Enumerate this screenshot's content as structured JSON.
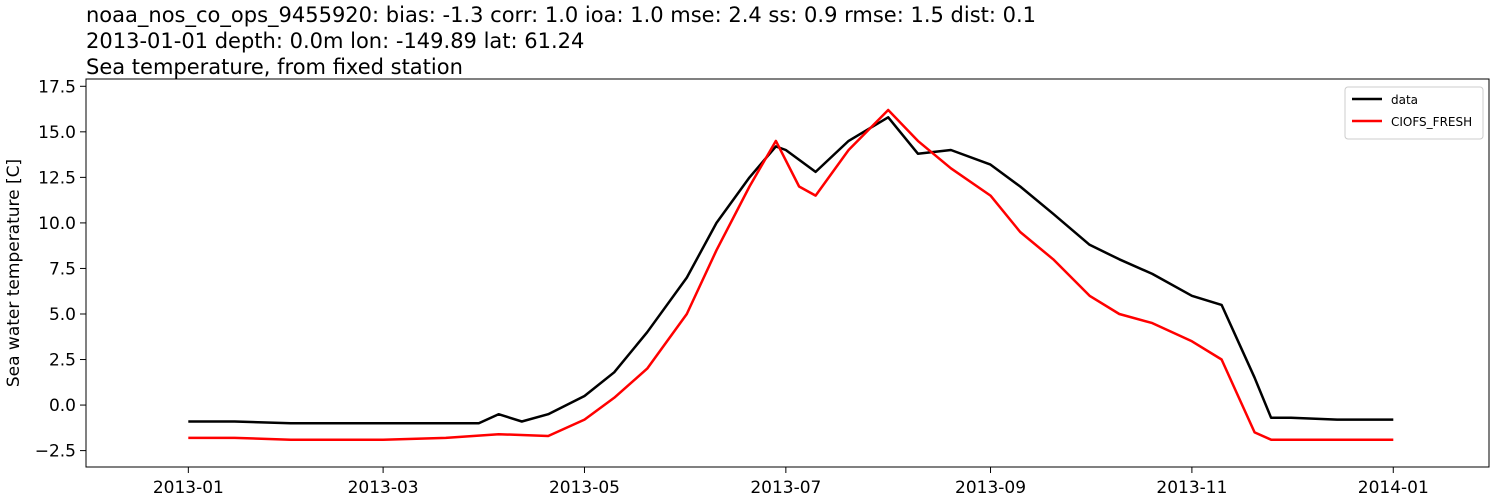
{
  "header": {
    "line1": "noaa_nos_co_ops_9455920: bias: -1.3  corr: 1.0  ioa: 1.0  mse: 2.4  ss: 0.9  rmse: 1.5  dist: 0.1",
    "line2": "2013-01-01 depth: 0.0m lon: -149.89 lat: 61.24",
    "line3": "Sea temperature, from fixed station"
  },
  "chart_data": {
    "type": "line",
    "title": "noaa_nos_co_ops_9455920: bias: -1.3  corr: 1.0  ioa: 1.0  mse: 2.4  ss: 0.9  rmse: 1.5  dist: 0.1",
    "xlabel": "",
    "ylabel": "Sea water temperature [C]",
    "xlim": [
      "2012-12-01",
      "2014-01-30"
    ],
    "ylim": [
      -3.4,
      17.9
    ],
    "x_ticks": [
      "2013-01",
      "2013-03",
      "2013-05",
      "2013-07",
      "2013-09",
      "2013-11",
      "2014-01"
    ],
    "y_ticks": [
      "−2.5",
      "0.0",
      "2.5",
      "5.0",
      "7.5",
      "10.0",
      "12.5",
      "15.0",
      "17.5"
    ],
    "y_tick_values": [
      -2.5,
      0.0,
      2.5,
      5.0,
      7.5,
      10.0,
      12.5,
      15.0,
      17.5
    ],
    "grid": false,
    "legend": "top-right",
    "series": [
      {
        "name": "data",
        "color": "#000000",
        "x": [
          "2013-01-01",
          "2013-01-15",
          "2013-02-01",
          "2013-03-01",
          "2013-03-20",
          "2013-03-30",
          "2013-04-05",
          "2013-04-12",
          "2013-04-20",
          "2013-05-01",
          "2013-05-10",
          "2013-05-20",
          "2013-06-01",
          "2013-06-10",
          "2013-06-20",
          "2013-06-28",
          "2013-07-01",
          "2013-07-10",
          "2013-07-20",
          "2013-08-01",
          "2013-08-10",
          "2013-08-20",
          "2013-09-01",
          "2013-09-10",
          "2013-09-20",
          "2013-10-01",
          "2013-10-10",
          "2013-10-20",
          "2013-11-01",
          "2013-11-10",
          "2013-11-15",
          "2013-11-20",
          "2013-11-25",
          "2013-12-01",
          "2013-12-15",
          "2014-01-01"
        ],
        "y": [
          -0.9,
          -0.9,
          -1.0,
          -1.0,
          -1.0,
          -1.0,
          -0.5,
          -0.9,
          -0.5,
          0.5,
          1.8,
          4.0,
          7.0,
          10.0,
          12.5,
          14.2,
          14.0,
          12.8,
          14.5,
          15.8,
          13.8,
          14.0,
          13.2,
          12.0,
          10.5,
          8.8,
          8.0,
          7.2,
          6.0,
          5.5,
          3.5,
          1.5,
          -0.7,
          -0.7,
          -0.8,
          -0.8
        ]
      },
      {
        "name": "CIOFS_FRESH",
        "color": "#ff0000",
        "x": [
          "2013-01-01",
          "2013-01-15",
          "2013-02-01",
          "2013-03-01",
          "2013-03-20",
          "2013-04-05",
          "2013-04-20",
          "2013-05-01",
          "2013-05-10",
          "2013-05-20",
          "2013-06-01",
          "2013-06-10",
          "2013-06-20",
          "2013-06-28",
          "2013-07-05",
          "2013-07-10",
          "2013-07-20",
          "2013-08-01",
          "2013-08-10",
          "2013-08-20",
          "2013-09-01",
          "2013-09-10",
          "2013-09-20",
          "2013-10-01",
          "2013-10-10",
          "2013-10-20",
          "2013-11-01",
          "2013-11-10",
          "2013-11-15",
          "2013-11-20",
          "2013-11-25",
          "2013-12-01",
          "2013-12-15",
          "2014-01-01"
        ],
        "y": [
          -1.8,
          -1.8,
          -1.9,
          -1.9,
          -1.8,
          -1.6,
          -1.7,
          -0.8,
          0.4,
          2.0,
          5.0,
          8.5,
          12.0,
          14.5,
          12.0,
          11.5,
          14.0,
          16.2,
          14.5,
          13.0,
          11.5,
          9.5,
          8.0,
          6.0,
          5.0,
          4.5,
          3.5,
          2.5,
          0.5,
          -1.5,
          -1.9,
          -1.9,
          -1.9,
          -1.9
        ]
      }
    ]
  }
}
